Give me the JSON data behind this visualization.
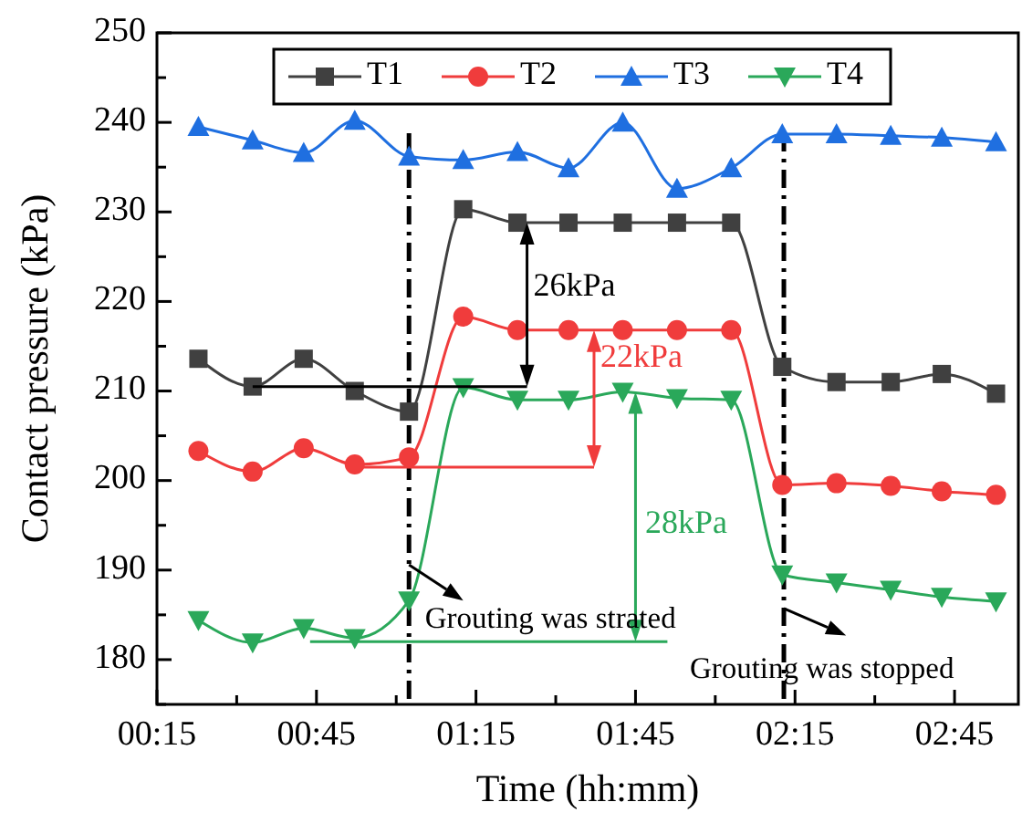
{
  "chart_data": {
    "type": "line",
    "xlabel": "Time (hh:mm)",
    "ylabel": "Contact pressure (kPa)",
    "x": [
      0.38,
      0.55,
      0.71,
      0.87,
      1.04,
      1.21,
      1.38,
      1.54,
      1.71,
      1.88,
      2.05,
      2.21,
      2.38,
      2.55,
      2.71,
      2.88
    ],
    "series": [
      {
        "name": "T1",
        "color": "#404040",
        "marker": "square",
        "values": [
          213.6,
          210.5,
          213.6,
          210.0,
          207.7,
          230.3,
          228.8,
          228.8,
          228.8,
          228.8,
          228.8,
          212.7,
          211.0,
          211.0,
          211.9,
          209.7
        ]
      },
      {
        "name": "T2",
        "color": "#f03c3c",
        "marker": "circle",
        "values": [
          203.3,
          201.0,
          203.6,
          201.8,
          202.6,
          218.3,
          216.8,
          216.8,
          216.8,
          216.8,
          216.8,
          199.5,
          199.7,
          199.4,
          198.8,
          198.4
        ]
      },
      {
        "name": "T3",
        "color": "#1f6fe0",
        "marker": "triangle",
        "values": [
          239.5,
          238.0,
          236.6,
          240.2,
          236.2,
          235.8,
          236.7,
          234.9,
          240.0,
          232.6,
          234.9,
          238.7,
          238.7,
          238.5,
          238.3,
          237.8
        ]
      },
      {
        "name": "T4",
        "color": "#2aa85a",
        "marker": "triangle-down",
        "values": [
          184.4,
          181.9,
          183.5,
          182.4,
          186.6,
          210.4,
          209.0,
          209.0,
          209.9,
          209.2,
          209.0,
          189.5,
          188.6,
          187.8,
          187.0,
          186.5
        ]
      }
    ],
    "xlim": [
      0.25,
      2.95
    ],
    "xticks": [
      {
        "value": 0.25,
        "label": "00:15"
      },
      {
        "value": 0.5,
        "label": null
      },
      {
        "value": 0.75,
        "label": "00:45"
      },
      {
        "value": 1.0,
        "label": null
      },
      {
        "value": 1.25,
        "label": "01:15"
      },
      {
        "value": 1.5,
        "label": null
      },
      {
        "value": 1.75,
        "label": "01:45"
      },
      {
        "value": 2.0,
        "label": null
      },
      {
        "value": 2.25,
        "label": "02:15"
      },
      {
        "value": 2.5,
        "label": null
      },
      {
        "value": 2.75,
        "label": "02:45"
      }
    ],
    "ylim": [
      175,
      250
    ],
    "yticks": [
      {
        "value": 175,
        "label": null
      },
      180,
      {
        "value": 185,
        "label": null
      },
      190,
      {
        "value": 195,
        "label": null
      },
      200,
      {
        "value": 205,
        "label": null
      },
      210,
      {
        "value": 215,
        "label": null
      },
      220,
      {
        "value": 225,
        "label": null
      },
      230,
      {
        "value": 235,
        "label": null
      },
      240,
      {
        "value": 245,
        "label": null
      },
      250
    ],
    "ref_lines": [
      {
        "axis": "x",
        "value": 1.04,
        "color": "#000000",
        "line_style": "dashed"
      },
      {
        "axis": "x",
        "value": 2.215,
        "color": "#000000",
        "line_style": "dashed"
      }
    ],
    "annotations": [
      "26kPa",
      "22kPa",
      "28kPa",
      "Grouting was strated",
      "Grouting was stopped"
    ],
    "legend": "top",
    "grid": false,
    "line_style": "solid"
  }
}
